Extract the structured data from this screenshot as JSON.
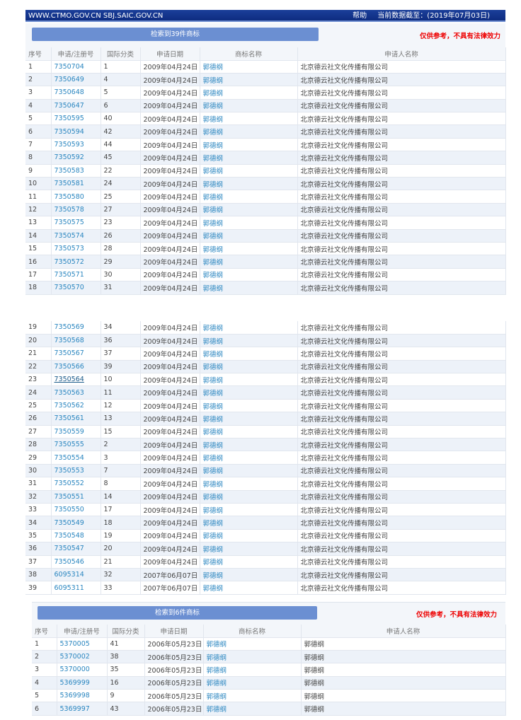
{
  "topbar": {
    "site": "WWW.CTMO.GOV.CN SBJ.SAIC.GOV.CN",
    "help": "帮助",
    "cutoff": "当前数据截至：(2019年07月03日)"
  },
  "headers": [
    "序号",
    "申请/注册号",
    "国际分类",
    "申请日期",
    "商标名称",
    "申请人名称"
  ],
  "section1": {
    "result_label": "检索到39件商标",
    "disclaimer": "仅供参考，不具有法律效力"
  },
  "section2": {
    "result_label": "检索到6件商标",
    "disclaimer": "仅供参考，不具有法律效力"
  },
  "table1a": [
    [
      "1",
      "7350704",
      "1",
      "2009年04月24日",
      "郭德纲",
      "北京德云社文化传播有限公司"
    ],
    [
      "2",
      "7350649",
      "4",
      "2009年04月24日",
      "郭德纲",
      "北京德云社文化传播有限公司"
    ],
    [
      "3",
      "7350648",
      "5",
      "2009年04月24日",
      "郭德纲",
      "北京德云社文化传播有限公司"
    ],
    [
      "4",
      "7350647",
      "6",
      "2009年04月24日",
      "郭德纲",
      "北京德云社文化传播有限公司"
    ],
    [
      "5",
      "7350595",
      "40",
      "2009年04月24日",
      "郭德纲",
      "北京德云社文化传播有限公司"
    ],
    [
      "6",
      "7350594",
      "42",
      "2009年04月24日",
      "郭德纲",
      "北京德云社文化传播有限公司"
    ],
    [
      "7",
      "7350593",
      "44",
      "2009年04月24日",
      "郭德纲",
      "北京德云社文化传播有限公司"
    ],
    [
      "8",
      "7350592",
      "45",
      "2009年04月24日",
      "郭德纲",
      "北京德云社文化传播有限公司"
    ],
    [
      "9",
      "7350583",
      "22",
      "2009年04月24日",
      "郭德纲",
      "北京德云社文化传播有限公司"
    ],
    [
      "10",
      "7350581",
      "24",
      "2009年04月24日",
      "郭德纲",
      "北京德云社文化传播有限公司"
    ],
    [
      "11",
      "7350580",
      "25",
      "2009年04月24日",
      "郭德纲",
      "北京德云社文化传播有限公司"
    ],
    [
      "12",
      "7350578",
      "27",
      "2009年04月24日",
      "郭德纲",
      "北京德云社文化传播有限公司"
    ],
    [
      "13",
      "7350575",
      "23",
      "2009年04月24日",
      "郭德纲",
      "北京德云社文化传播有限公司"
    ],
    [
      "14",
      "7350574",
      "26",
      "2009年04月24日",
      "郭德纲",
      "北京德云社文化传播有限公司"
    ],
    [
      "15",
      "7350573",
      "28",
      "2009年04月24日",
      "郭德纲",
      "北京德云社文化传播有限公司"
    ],
    [
      "16",
      "7350572",
      "29",
      "2009年04月24日",
      "郭德纲",
      "北京德云社文化传播有限公司"
    ],
    [
      "17",
      "7350571",
      "30",
      "2009年04月24日",
      "郭德纲",
      "北京德云社文化传播有限公司"
    ],
    [
      "18",
      "7350570",
      "31",
      "2009年04月24日",
      "郭德纲",
      "北京德云社文化传播有限公司"
    ]
  ],
  "table1b": [
    [
      "19",
      "7350569",
      "34",
      "2009年04月24日",
      "郭德纲",
      "北京德云社文化传播有限公司"
    ],
    [
      "20",
      "7350568",
      "36",
      "2009年04月24日",
      "郭德纲",
      "北京德云社文化传播有限公司"
    ],
    [
      "21",
      "7350567",
      "37",
      "2009年04月24日",
      "郭德纲",
      "北京德云社文化传播有限公司"
    ],
    [
      "22",
      "7350566",
      "39",
      "2009年04月24日",
      "郭德纲",
      "北京德云社文化传播有限公司"
    ],
    [
      "23",
      "7350564",
      "10",
      "2009年04月24日",
      "郭德纲",
      "北京德云社文化传播有限公司"
    ],
    [
      "24",
      "7350563",
      "11",
      "2009年04月24日",
      "郭德纲",
      "北京德云社文化传播有限公司"
    ],
    [
      "25",
      "7350562",
      "12",
      "2009年04月24日",
      "郭德纲",
      "北京德云社文化传播有限公司"
    ],
    [
      "26",
      "7350561",
      "13",
      "2009年04月24日",
      "郭德纲",
      "北京德云社文化传播有限公司"
    ],
    [
      "27",
      "7350559",
      "15",
      "2009年04月24日",
      "郭德纲",
      "北京德云社文化传播有限公司"
    ],
    [
      "28",
      "7350555",
      "2",
      "2009年04月24日",
      "郭德纲",
      "北京德云社文化传播有限公司"
    ],
    [
      "29",
      "7350554",
      "3",
      "2009年04月24日",
      "郭德纲",
      "北京德云社文化传播有限公司"
    ],
    [
      "30",
      "7350553",
      "7",
      "2009年04月24日",
      "郭德纲",
      "北京德云社文化传播有限公司"
    ],
    [
      "31",
      "7350552",
      "8",
      "2009年04月24日",
      "郭德纲",
      "北京德云社文化传播有限公司"
    ],
    [
      "32",
      "7350551",
      "14",
      "2009年04月24日",
      "郭德纲",
      "北京德云社文化传播有限公司"
    ],
    [
      "33",
      "7350550",
      "17",
      "2009年04月24日",
      "郭德纲",
      "北京德云社文化传播有限公司"
    ],
    [
      "34",
      "7350549",
      "18",
      "2009年04月24日",
      "郭德纲",
      "北京德云社文化传播有限公司"
    ],
    [
      "35",
      "7350548",
      "19",
      "2009年04月24日",
      "郭德纲",
      "北京德云社文化传播有限公司"
    ],
    [
      "36",
      "7350547",
      "20",
      "2009年04月24日",
      "郭德纲",
      "北京德云社文化传播有限公司"
    ],
    [
      "37",
      "7350546",
      "21",
      "2009年04月24日",
      "郭德纲",
      "北京德云社文化传播有限公司"
    ],
    [
      "38",
      "6095314",
      "32",
      "2007年06月07日",
      "郭德纲",
      "北京德云社文化传播有限公司"
    ],
    [
      "39",
      "6095311",
      "33",
      "2007年06月07日",
      "郭德纲",
      "北京德云社文化传播有限公司"
    ]
  ],
  "table2": [
    [
      "1",
      "5370005",
      "41",
      "2006年05月23日",
      "郭德纲",
      "郭德纲"
    ],
    [
      "2",
      "5370002",
      "38",
      "2006年05月23日",
      "郭德纲",
      "郭德纲"
    ],
    [
      "3",
      "5370000",
      "35",
      "2006年05月23日",
      "郭德纲",
      "郭德纲"
    ],
    [
      "4",
      "5369999",
      "16",
      "2006年05月23日",
      "郭德纲",
      "郭德纲"
    ],
    [
      "5",
      "5369998",
      "9",
      "2006年05月23日",
      "郭德纲",
      "郭德纲"
    ],
    [
      "6",
      "5369997",
      "43",
      "2006年05月23日",
      "郭德纲",
      "郭德纲"
    ]
  ],
  "hovered_link": "7350564"
}
